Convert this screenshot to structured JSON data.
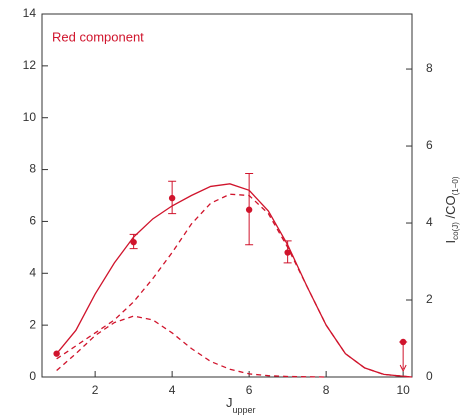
{
  "chart_data": {
    "type": "line",
    "annotation": "Red component",
    "x_label": {
      "main": "J",
      "sub": "upper"
    },
    "y2_label": {
      "main": "I",
      "sub1": "co(J)",
      "mid": " /CO",
      "sub2": "(1−0)"
    },
    "color": "#d0142c",
    "xlim": [
      0.62,
      10.23
    ],
    "xticks": [
      2,
      4,
      6,
      8,
      10
    ],
    "ylim": [
      0,
      14
    ],
    "yticks": [
      0,
      2,
      4,
      6,
      8,
      10,
      12,
      14
    ],
    "y2lim": [
      0,
      9.43
    ],
    "y2ticks": [
      0,
      2,
      4,
      6,
      8
    ],
    "points": {
      "x": [
        1,
        3,
        4,
        6,
        7,
        10
      ],
      "values": [
        0.9,
        5.2,
        6.9,
        6.45,
        4.8,
        1.35
      ],
      "err_low": [
        null,
        4.95,
        6.3,
        5.1,
        4.4,
        null
      ],
      "err_high": [
        null,
        5.5,
        7.55,
        7.85,
        5.25,
        null
      ],
      "upper_limit": [
        false,
        false,
        false,
        false,
        false,
        true
      ]
    },
    "series": [
      {
        "style": "solid",
        "x": [
          1,
          1.5,
          2,
          2.5,
          3,
          3.5,
          4,
          4.5,
          5,
          5.5,
          6,
          6.5,
          7,
          7.5,
          8,
          8.5,
          9,
          9.5,
          10,
          10.23
        ],
        "values": [
          0.9,
          1.8,
          3.2,
          4.4,
          5.4,
          6.1,
          6.6,
          7.0,
          7.35,
          7.45,
          7.2,
          6.4,
          5.1,
          3.5,
          2.0,
          0.9,
          0.35,
          0.1,
          0.03,
          0
        ]
      },
      {
        "style": "dashed",
        "x": [
          1,
          1.5,
          2,
          2.5,
          3,
          3.5,
          4,
          4.5,
          5,
          5.5,
          6,
          6.5,
          7,
          7.5,
          8,
          8.5,
          9,
          9.5,
          10,
          10.23
        ],
        "values": [
          0.7,
          1.2,
          1.7,
          2.2,
          2.9,
          3.8,
          4.8,
          5.9,
          6.7,
          7.05,
          7.0,
          6.3,
          5.0,
          3.5,
          2.0,
          0.9,
          0.35,
          0.1,
          0.03,
          0
        ]
      },
      {
        "style": "dashed",
        "x": [
          1,
          1.5,
          2,
          2.5,
          3,
          3.5,
          4,
          4.5,
          5,
          5.5,
          6,
          6.5,
          7,
          8
        ],
        "values": [
          0.25,
          0.9,
          1.6,
          2.1,
          2.35,
          2.2,
          1.7,
          1.1,
          0.6,
          0.3,
          0.12,
          0.05,
          0.02,
          0
        ]
      }
    ]
  }
}
